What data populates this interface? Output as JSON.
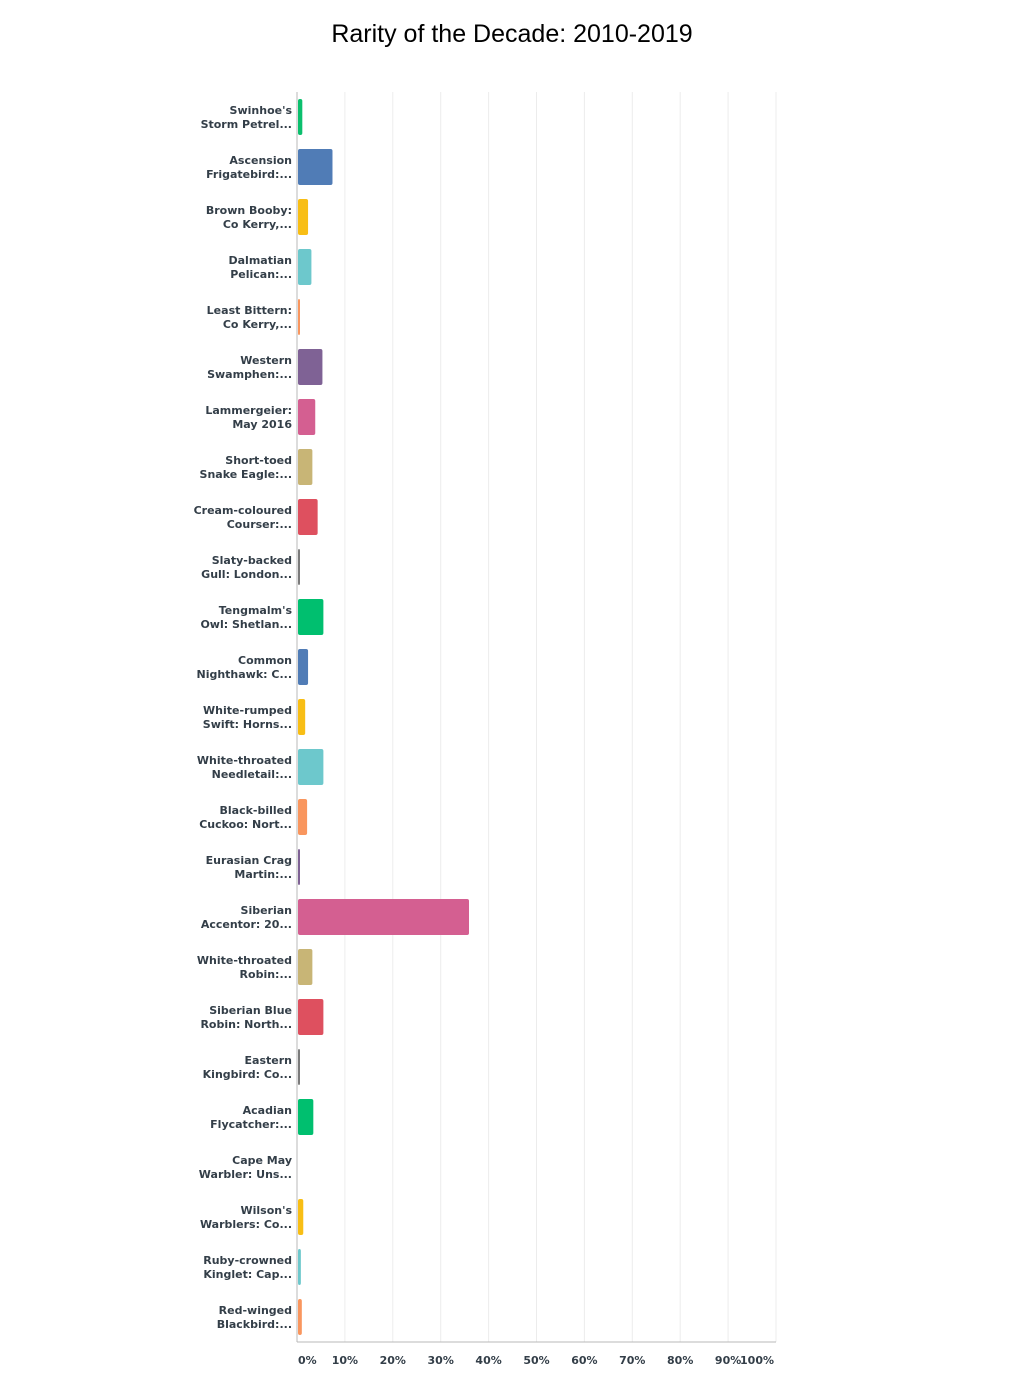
{
  "chart_data": {
    "type": "bar",
    "orientation": "horizontal",
    "title": "Rarity of the Decade: 2010-2019",
    "xlabel": "",
    "ylabel": "",
    "xlim": [
      0,
      100
    ],
    "grid": true,
    "x_ticks": [
      "0%",
      "10%",
      "20%",
      "30%",
      "40%",
      "50%",
      "60%",
      "70%",
      "80%",
      "90%",
      "100%"
    ],
    "categories": [
      [
        "Swinhoe's",
        "Storm Petrel..."
      ],
      [
        "Ascension",
        "Frigatebird:..."
      ],
      [
        "Brown Booby:",
        "Co Kerry,..."
      ],
      [
        "Dalmatian",
        "Pelican:..."
      ],
      [
        "Least Bittern:",
        "Co Kerry,..."
      ],
      [
        "Western",
        "Swamphen:..."
      ],
      [
        "Lammergeier:",
        "May 2016"
      ],
      [
        "Short-toed",
        "Snake Eagle:..."
      ],
      [
        "Cream-coloured",
        "Courser:..."
      ],
      [
        "Slaty-backed",
        "Gull: London..."
      ],
      [
        "Tengmalm's",
        "Owl: Shetlan..."
      ],
      [
        "Common",
        "Nighthawk: C..."
      ],
      [
        "White-rumped",
        "Swift: Horns..."
      ],
      [
        "White-throated",
        "Needletail:..."
      ],
      [
        "Black-billed",
        "Cuckoo: Nort..."
      ],
      [
        "Eurasian Crag",
        "Martin:..."
      ],
      [
        "Siberian",
        "Accentor: 20..."
      ],
      [
        "White-throated",
        "Robin:..."
      ],
      [
        "Siberian Blue",
        "Robin: North..."
      ],
      [
        "Eastern",
        "Kingbird: Co..."
      ],
      [
        "Acadian",
        "Flycatcher:..."
      ],
      [
        "Cape May",
        "Warbler: Uns..."
      ],
      [
        "Wilson's",
        "Warblers: Co..."
      ],
      [
        "Ruby-crowned",
        "Kinglet: Cap..."
      ],
      [
        "Red-winged",
        "Blackbird:..."
      ]
    ],
    "values": [
      0.9,
      7.2,
      2.1,
      2.8,
      0.4,
      5.1,
      3.6,
      3.0,
      4.1,
      0.4,
      5.3,
      2.1,
      1.5,
      5.3,
      1.9,
      0.4,
      35.7,
      3.0,
      5.3,
      0.4,
      3.2,
      0,
      1.1,
      0.6,
      0.8
    ],
    "colors": [
      "#0bbf6d",
      "#507cb6",
      "#f8be15",
      "#6dc8cc",
      "#f9965e",
      "#7f6295",
      "#d45f91",
      "#c8b576",
      "#de505f",
      "#7b7b7b",
      "#00bf6f",
      "#507cb6",
      "#f8be15",
      "#6dc8cc",
      "#f9965e",
      "#7f6295",
      "#d45f91",
      "#c8b576",
      "#de505f",
      "#7b7b7b",
      "#00bf6f",
      "#507cb6",
      "#f8be15",
      "#6dc8cc",
      "#f9965e"
    ]
  }
}
